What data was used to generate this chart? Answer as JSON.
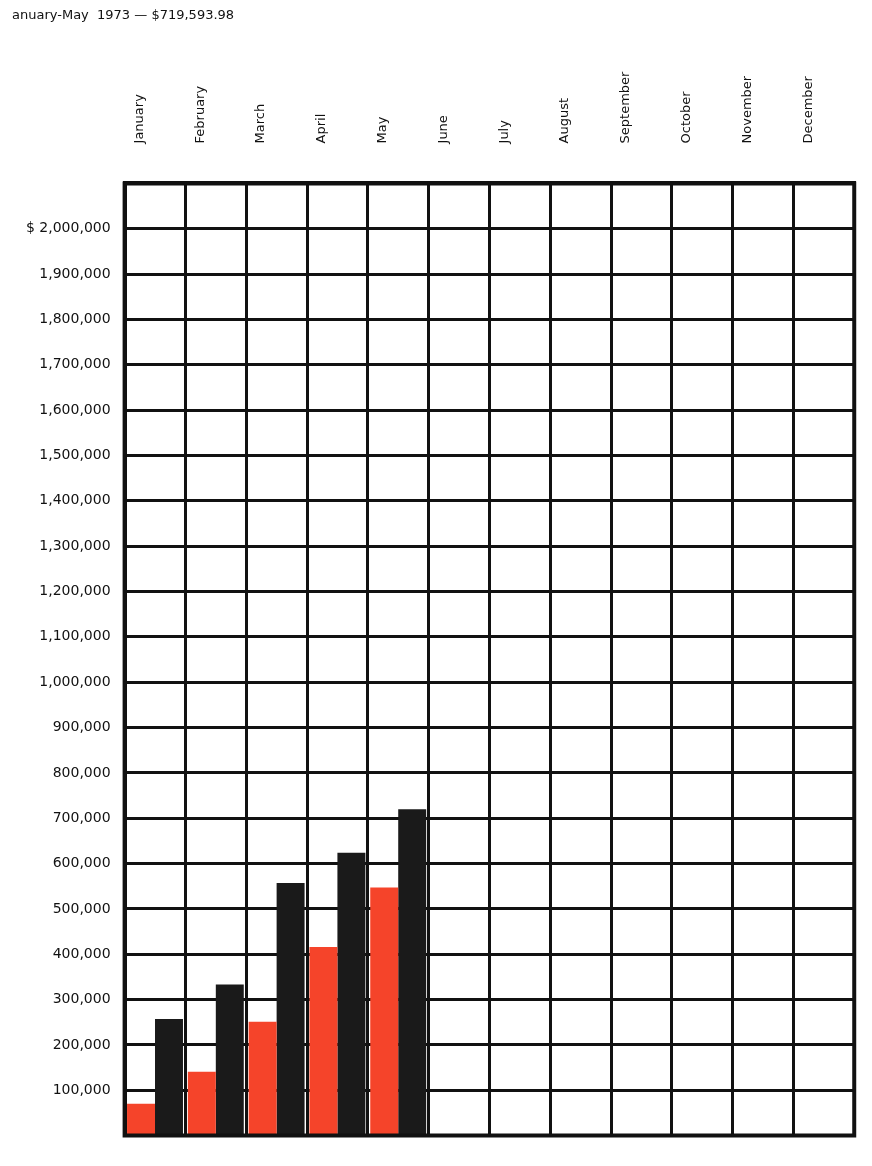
{
  "chart_data": {
    "type": "bar",
    "title": "anuary-May  1973 — $719,593.98",
    "categories": [
      "January",
      "February",
      "March",
      "April",
      "May",
      "June",
      "July",
      "August",
      "September",
      "October",
      "November",
      "December"
    ],
    "series": [
      {
        "color": "#f5442a",
        "values": [
          70000,
          141000,
          251000,
          416000,
          547000,
          null,
          null,
          null,
          null,
          null,
          null,
          null
        ]
      },
      {
        "color": "#1a1a1a",
        "values": [
          257000,
          333000,
          557000,
          624000,
          720000,
          null,
          null,
          null,
          null,
          null,
          null,
          null
        ]
      }
    ],
    "ylim": [
      0,
      2100000
    ],
    "yticks": [
      {
        "value": 100000,
        "label": "100,000"
      },
      {
        "value": 200000,
        "label": "200,000"
      },
      {
        "value": 300000,
        "label": "300,000"
      },
      {
        "value": 400000,
        "label": "400,000"
      },
      {
        "value": 500000,
        "label": "500,000"
      },
      {
        "value": 600000,
        "label": "600,000"
      },
      {
        "value": 700000,
        "label": "700,000"
      },
      {
        "value": 800000,
        "label": "800,000"
      },
      {
        "value": 900000,
        "label": "900,000"
      },
      {
        "value": 1000000,
        "label": "1,000,000"
      },
      {
        "value": 1100000,
        "label": "1,100,000"
      },
      {
        "value": 1200000,
        "label": "1,200,000"
      },
      {
        "value": 1300000,
        "label": "1,300,000"
      },
      {
        "value": 1400000,
        "label": "1,400,000"
      },
      {
        "value": 1500000,
        "label": "1,500,000"
      },
      {
        "value": 1600000,
        "label": "1,600,000"
      },
      {
        "value": 1700000,
        "label": "1,700,000"
      },
      {
        "value": 1800000,
        "label": "1,800,000"
      },
      {
        "value": 1900000,
        "label": "1,900,000"
      },
      {
        "value": 2000000,
        "label": "$ 2,000,000"
      }
    ],
    "grid": true
  }
}
